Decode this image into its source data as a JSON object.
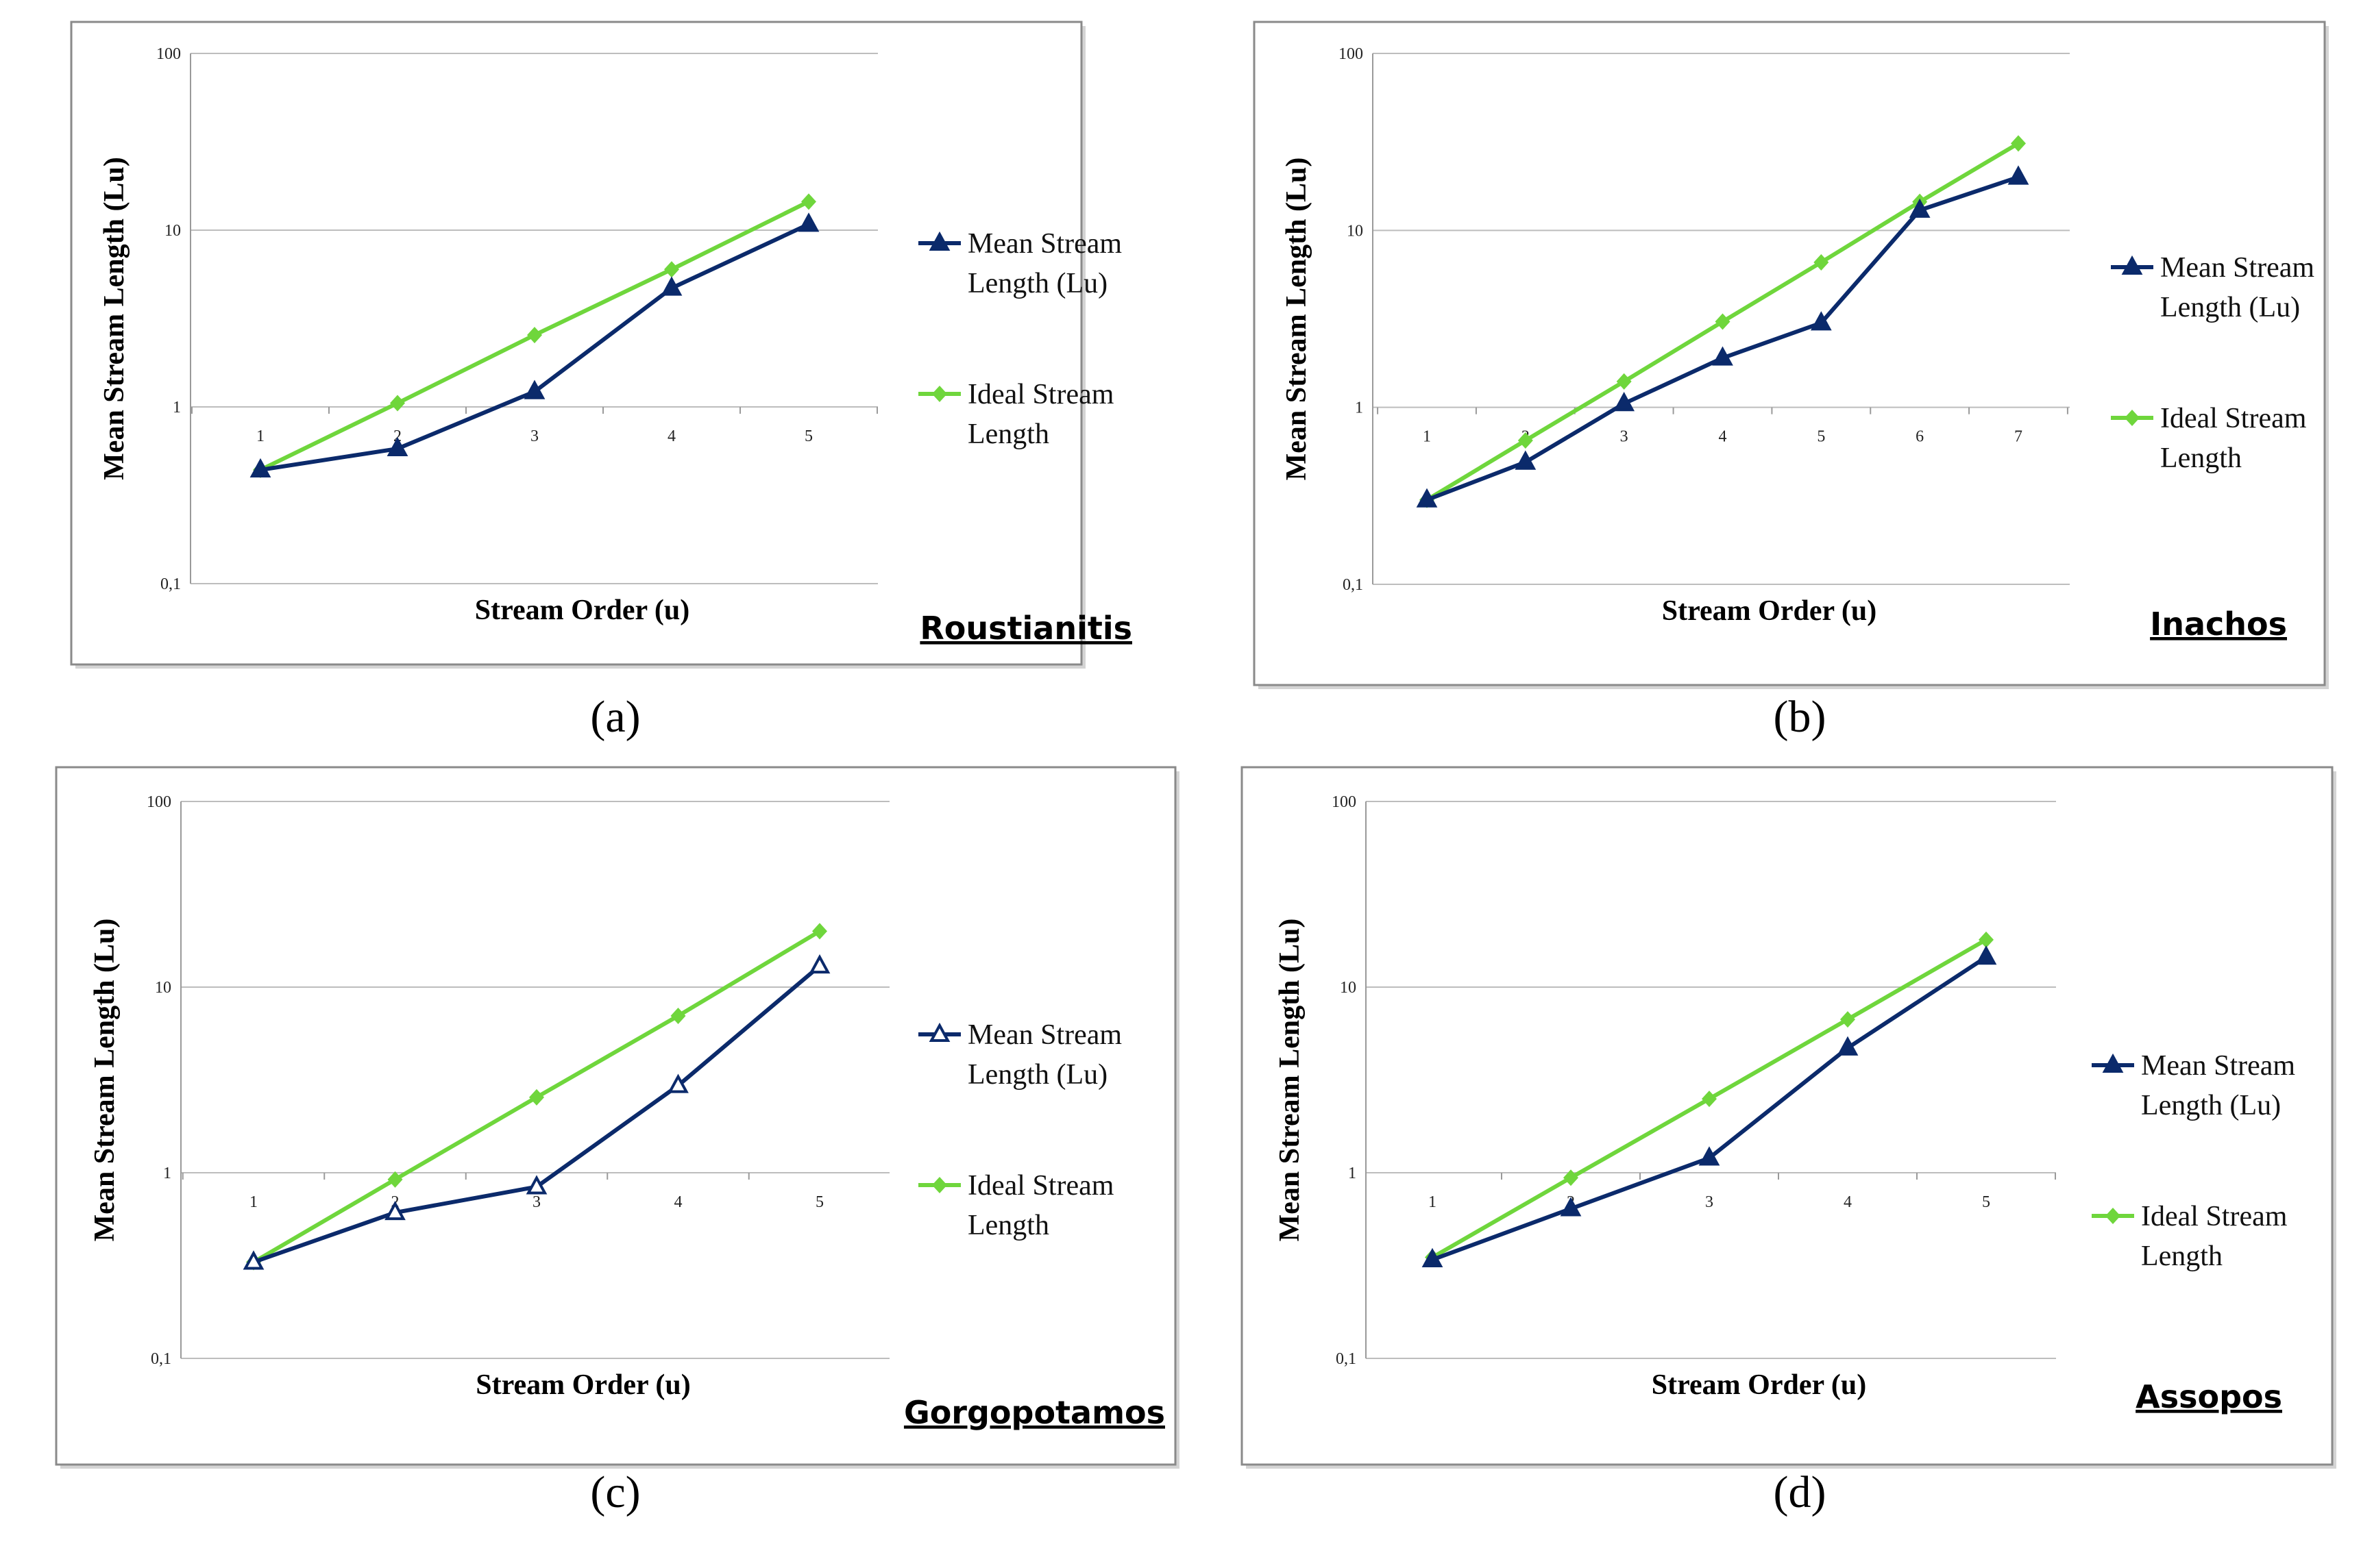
{
  "colors": {
    "mean_series": "#0b2a6b",
    "ideal_series": "#6fd63c",
    "frame": "#8a8a8a",
    "grid": "#bdbdbd"
  },
  "chart_data": [
    {
      "type": "line",
      "panel_label": "(a)",
      "basin_name": "Roustianitis",
      "title": "",
      "xlabel": "Stream Order (u)",
      "ylabel": "Mean Stream Length (Lu)",
      "y_scale": "log",
      "ylim": [
        0.1,
        100
      ],
      "y_ticks": [
        "0,1",
        "1",
        "10",
        "100"
      ],
      "x": [
        1,
        2,
        3,
        4,
        5
      ],
      "x_tick_labels": [
        "1",
        "2",
        "3",
        "4",
        "5"
      ],
      "series": [
        {
          "name": "Mean Stream Length (Lu)",
          "legend_lines": [
            "Mean Stream",
            "Length (Lu)"
          ],
          "marker": "triangle",
          "values": [
            0.44,
            0.58,
            1.22,
            4.7,
            10.8
          ]
        },
        {
          "name": "Ideal Stream Length",
          "legend_lines": [
            "Ideal Stream",
            "Length"
          ],
          "marker": "diamond",
          "values": [
            0.44,
            1.05,
            2.55,
            6.0,
            14.5
          ]
        }
      ]
    },
    {
      "type": "line",
      "panel_label": "(b)",
      "basin_name": "Inachos",
      "title": "",
      "xlabel": "Stream Order (u)",
      "ylabel": "Mean Stream Length (Lu)",
      "y_scale": "log",
      "ylim": [
        0.1,
        100
      ],
      "y_ticks": [
        "0,1",
        "1",
        "10",
        "100"
      ],
      "x": [
        1,
        2,
        3,
        4,
        5,
        6,
        7
      ],
      "x_tick_labels": [
        "1",
        "2",
        "3",
        "4",
        "5",
        "6",
        "7"
      ],
      "series": [
        {
          "name": "Mean Stream Length (Lu)",
          "legend_lines": [
            "Mean Stream",
            "Length (Lu)"
          ],
          "marker": "triangle",
          "values": [
            0.3,
            0.49,
            1.05,
            1.9,
            3.0,
            13.0,
            20.0
          ]
        },
        {
          "name": "Ideal Stream Length",
          "legend_lines": [
            "Ideal Stream",
            "Length"
          ],
          "marker": "diamond",
          "values": [
            0.3,
            0.65,
            1.4,
            3.05,
            6.6,
            14.5,
            31.0
          ]
        }
      ]
    },
    {
      "type": "line",
      "panel_label": "(c)",
      "basin_name": "Gorgopotamos",
      "title": "",
      "xlabel": "Stream Order (u)",
      "ylabel": "Mean Stream Length (Lu)",
      "y_scale": "log",
      "ylim": [
        0.1,
        100
      ],
      "y_ticks": [
        "0,1",
        "1",
        "10",
        "100"
      ],
      "x": [
        1,
        2,
        3,
        4,
        5
      ],
      "x_tick_labels": [
        "1",
        "2",
        "3",
        "4",
        "5"
      ],
      "series": [
        {
          "name": "Mean Stream Length (Lu)",
          "legend_lines": [
            "Mean Stream",
            "Length (Lu)"
          ],
          "marker": "triangle-open",
          "values": [
            0.33,
            0.61,
            0.84,
            2.95,
            13.0
          ]
        },
        {
          "name": "Ideal Stream Length",
          "legend_lines": [
            "Ideal Stream",
            "Length"
          ],
          "marker": "diamond",
          "values": [
            0.33,
            0.92,
            2.55,
            7.0,
            20.0
          ]
        }
      ]
    },
    {
      "type": "line",
      "panel_label": "(d)",
      "basin_name": "Assopos",
      "title": "",
      "xlabel": "Stream Order (u)",
      "ylabel": "Mean Stream Length (Lu)",
      "y_scale": "log",
      "ylim": [
        0.1,
        100
      ],
      "y_ticks": [
        "0,1",
        "1",
        "10",
        "100"
      ],
      "x": [
        1,
        2,
        3,
        4,
        5
      ],
      "x_tick_labels": [
        "1",
        "2",
        "3",
        "4",
        "5"
      ],
      "series": [
        {
          "name": "Mean Stream Length (Lu)",
          "legend_lines": [
            "Mean Stream",
            "Length (Lu)"
          ],
          "marker": "triangle",
          "values": [
            0.34,
            0.64,
            1.2,
            4.7,
            14.5
          ]
        },
        {
          "name": "Ideal Stream Length",
          "legend_lines": [
            "Ideal Stream",
            "Length"
          ],
          "marker": "diamond",
          "values": [
            0.35,
            0.94,
            2.5,
            6.7,
            18.0
          ]
        }
      ]
    }
  ]
}
